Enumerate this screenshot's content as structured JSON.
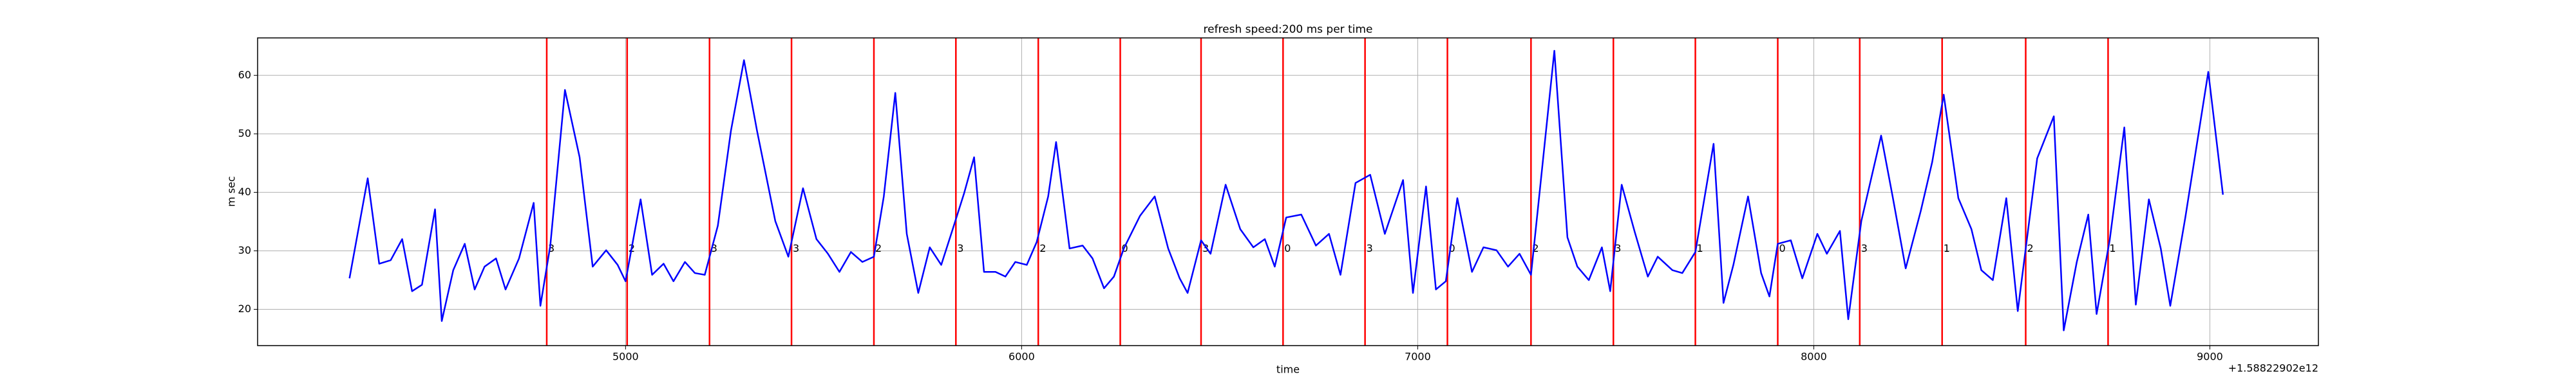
{
  "chart_data": {
    "type": "line",
    "title": "refresh speed:200 ms per time",
    "x_label": "time",
    "y_label": "m sec",
    "x_offset_label": "+1.58822902e12",
    "xlim": [
      4071,
      9274
    ],
    "xticks": [
      5000,
      6000,
      7000,
      8000,
      9000
    ],
    "ylim": [
      13.8,
      66.4
    ],
    "yticks": [
      20,
      30,
      40,
      50,
      60
    ],
    "grid": true,
    "event_color": "#ff0000",
    "events": [
      {
        "x": 4801,
        "label": "3"
      },
      {
        "x": 5004,
        "label": "2"
      },
      {
        "x": 5212,
        "label": "3"
      },
      {
        "x": 5419,
        "label": "3"
      },
      {
        "x": 5627,
        "label": "2"
      },
      {
        "x": 5834,
        "label": "3"
      },
      {
        "x": 6042,
        "label": "2"
      },
      {
        "x": 6249,
        "label": "0"
      },
      {
        "x": 6453,
        "label": "3"
      },
      {
        "x": 6660,
        "label": "0"
      },
      {
        "x": 6867,
        "label": "3"
      },
      {
        "x": 7075,
        "label": "0"
      },
      {
        "x": 7286,
        "label": "2"
      },
      {
        "x": 7494,
        "label": "3"
      },
      {
        "x": 7701,
        "label": "1"
      },
      {
        "x": 7909,
        "label": "0"
      },
      {
        "x": 8116,
        "label": "3"
      },
      {
        "x": 8324,
        "label": "1"
      },
      {
        "x": 8535,
        "label": "2"
      },
      {
        "x": 8743,
        "label": "1"
      }
    ],
    "series": [
      {
        "color": "#0000ff",
        "x": [
          4303,
          4349,
          4378,
          4407,
          4436,
          4461,
          4486,
          4519,
          4536,
          4565,
          4594,
          4619,
          4644,
          4673,
          4697,
          4731,
          4768,
          4785,
          4810,
          4847,
          4884,
          4917,
          4951,
          4980,
          5000,
          5038,
          5067,
          5096,
          5121,
          5150,
          5175,
          5200,
          5233,
          5266,
          5299,
          5332,
          5378,
          5411,
          5448,
          5482,
          5511,
          5540,
          5569,
          5598,
          5627,
          5652,
          5681,
          5710,
          5739,
          5768,
          5797,
          5826,
          5855,
          5880,
          5905,
          5934,
          5959,
          5984,
          6013,
          6038,
          6067,
          6087,
          6121,
          6154,
          6179,
          6208,
          6233,
          6258,
          6299,
          6336,
          6370,
          6399,
          6419,
          6453,
          6477,
          6515,
          6552,
          6585,
          6614,
          6639,
          6668,
          6706,
          6743,
          6776,
          6805,
          6843,
          6880,
          6917,
          6963,
          6988,
          7021,
          7046,
          7071,
          7100,
          7137,
          7166,
          7199,
          7228,
          7257,
          7286,
          7311,
          7345,
          7378,
          7403,
          7432,
          7465,
          7486,
          7515,
          7548,
          7581,
          7606,
          7643,
          7668,
          7701,
          7747,
          7772,
          7797,
          7834,
          7867,
          7888,
          7909,
          7942,
          7971,
          8009,
          8033,
          8066,
          8087,
          8120,
          8170,
          8199,
          8232,
          8270,
          8299,
          8328,
          8365,
          8398,
          8423,
          8452,
          8486,
          8515,
          8564,
          8606,
          8631,
          8664,
          8693,
          8714,
          8747,
          8784,
          8813,
          8846,
          8876,
          8900,
          8938,
          8996,
          9033
        ],
        "values": [
          25.3,
          42.4,
          27.8,
          28.4,
          32.0,
          23.1,
          24.2,
          37.1,
          18.0,
          26.7,
          31.2,
          23.4,
          27.3,
          28.7,
          23.4,
          28.7,
          38.2,
          20.6,
          30.9,
          57.5,
          46.0,
          27.3,
          30.1,
          27.6,
          24.8,
          38.8,
          25.9,
          27.8,
          24.8,
          28.1,
          26.2,
          25.9,
          34.3,
          50.5,
          62.6,
          50.5,
          35.1,
          29.0,
          40.7,
          32.0,
          29.5,
          26.4,
          29.8,
          28.1,
          29.0,
          39.3,
          57.0,
          32.9,
          22.8,
          30.6,
          27.6,
          33.7,
          39.9,
          46.0,
          26.4,
          26.4,
          25.6,
          28.1,
          27.6,
          31.5,
          39.3,
          48.6,
          30.4,
          30.9,
          28.7,
          23.6,
          25.6,
          30.4,
          36.0,
          39.3,
          30.4,
          25.3,
          22.8,
          31.8,
          29.5,
          41.3,
          33.7,
          30.6,
          32.0,
          27.3,
          35.7,
          36.2,
          30.9,
          32.9,
          25.9,
          41.6,
          43.0,
          32.9,
          42.1,
          22.8,
          41.0,
          23.4,
          24.8,
          39.0,
          26.4,
          30.6,
          30.1,
          27.3,
          29.5,
          25.9,
          42.1,
          64.2,
          32.3,
          27.3,
          25.0,
          30.6,
          23.1,
          41.3,
          33.2,
          25.6,
          29.0,
          26.7,
          26.2,
          29.8,
          48.3,
          21.1,
          27.6,
          39.3,
          26.2,
          22.2,
          31.2,
          31.8,
          25.3,
          32.9,
          29.5,
          33.4,
          18.3,
          35.1,
          49.7,
          39.3,
          27.0,
          36.8,
          45.2,
          56.7,
          39.0,
          33.7,
          26.7,
          25.0,
          39.0,
          19.7,
          45.8,
          53.0,
          16.4,
          28.1,
          36.2,
          19.2,
          31.8,
          51.1,
          20.8,
          38.8,
          30.4,
          20.6,
          35.7,
          60.6,
          39.6
        ]
      }
    ]
  }
}
